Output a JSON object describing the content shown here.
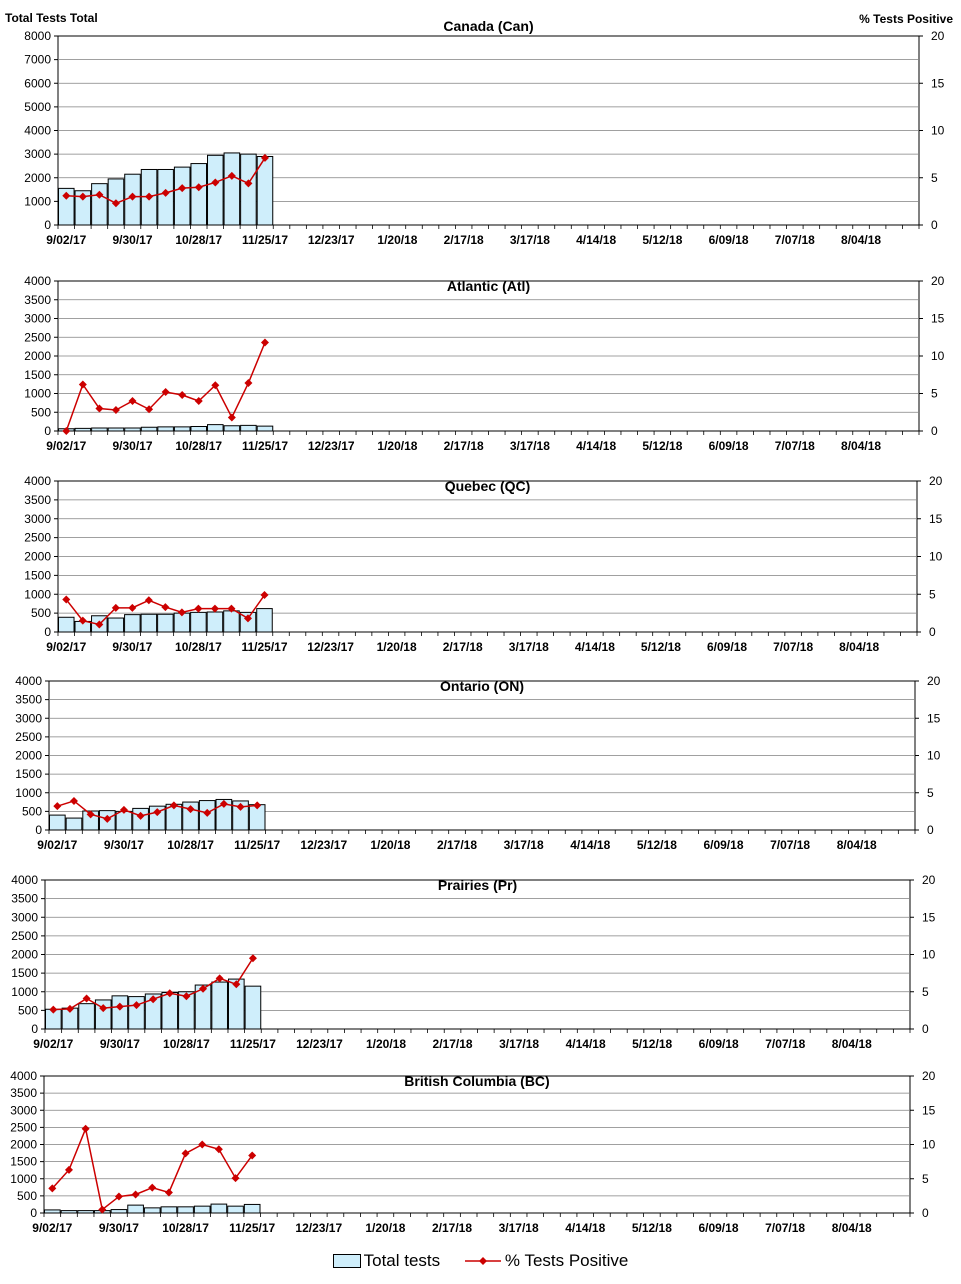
{
  "header": {
    "left_label": "Total Tests Total",
    "right_label": "% Tests Positive"
  },
  "legend": {
    "bars_label": "Total tests",
    "line_label": "% Tests Positive"
  },
  "colors": {
    "bar_fill": "#cfeefb",
    "bar_stroke": "#000000",
    "line": "#cc0000",
    "grid": "#808080"
  },
  "shared_x_ticks": [
    "9/02/17",
    "9/30/17",
    "10/28/17",
    "11/25/17",
    "12/23/17",
    "1/20/18",
    "2/17/18",
    "3/17/18",
    "4/14/18",
    "5/12/18",
    "6/09/18",
    "7/07/18",
    "8/04/18"
  ],
  "chart_data": [
    {
      "type": "bar",
      "title": "Canada (Can)",
      "x_ticks": [
        "9/02/17",
        "9/30/17",
        "10/28/17",
        "11/25/17",
        "12/23/17",
        "1/20/18",
        "2/17/18",
        "3/17/18",
        "4/14/18",
        "5/12/18",
        "6/09/18",
        "7/07/18",
        "8/04/18"
      ],
      "y_left": [
        0,
        8000
      ],
      "y_left_ticks": [
        0,
        1000,
        2000,
        3000,
        4000,
        5000,
        6000,
        7000,
        8000
      ],
      "y_right": [
        0,
        20
      ],
      "y_right_ticks": [
        0,
        5,
        10,
        15,
        20
      ],
      "series": [
        {
          "name": "Total tests",
          "type": "bar",
          "axis": "left",
          "values": [
            1550,
            1450,
            1750,
            1950,
            2150,
            2350,
            2350,
            2450,
            2600,
            2950,
            3050,
            3000,
            2900
          ]
        },
        {
          "name": "% Tests Positive",
          "type": "line",
          "axis": "right",
          "values": [
            3.1,
            3.0,
            3.2,
            2.3,
            3.0,
            3.0,
            3.4,
            3.9,
            4.0,
            4.5,
            5.2,
            4.4,
            7.1
          ]
        }
      ],
      "grid": true
    },
    {
      "type": "bar",
      "title": "Atlantic (Atl)",
      "x_ticks": [
        "9/02/17",
        "9/30/17",
        "10/28/17",
        "11/25/17",
        "12/23/17",
        "1/20/18",
        "2/17/18",
        "3/17/18",
        "4/14/18",
        "5/12/18",
        "6/09/18",
        "7/07/18",
        "8/04/18"
      ],
      "y_left": [
        0,
        4000
      ],
      "y_left_ticks": [
        0,
        500,
        1000,
        1500,
        2000,
        2500,
        3000,
        3500,
        4000
      ],
      "y_right": [
        0,
        20
      ],
      "y_right_ticks": [
        0,
        5,
        10,
        15,
        20
      ],
      "series": [
        {
          "name": "Total tests",
          "type": "bar",
          "axis": "left",
          "values": [
            60,
            70,
            80,
            80,
            80,
            100,
            110,
            110,
            120,
            170,
            140,
            150,
            130
          ]
        },
        {
          "name": "% Tests Positive",
          "type": "line",
          "axis": "right",
          "values": [
            0,
            6.2,
            3.0,
            2.8,
            4.0,
            2.9,
            5.2,
            4.8,
            4.0,
            6.1,
            1.8,
            6.4,
            11.8
          ]
        }
      ],
      "grid": true
    },
    {
      "type": "bar",
      "title": "Quebec (QC)",
      "x_ticks": [
        "9/02/17",
        "9/30/17",
        "10/28/17",
        "11/25/17",
        "12/23/17",
        "1/20/18",
        "2/17/18",
        "3/17/18",
        "4/14/18",
        "5/12/18",
        "6/09/18",
        "7/07/18",
        "8/04/18"
      ],
      "y_left": [
        0,
        4000
      ],
      "y_left_ticks": [
        0,
        500,
        1000,
        1500,
        2000,
        2500,
        3000,
        3500,
        4000
      ],
      "y_right": [
        0,
        20
      ],
      "y_right_ticks": [
        0,
        5,
        10,
        15,
        20
      ],
      "series": [
        {
          "name": "Total tests",
          "type": "bar",
          "axis": "left",
          "values": [
            390,
            280,
            430,
            370,
            460,
            470,
            470,
            500,
            520,
            530,
            560,
            520,
            620
          ]
        },
        {
          "name": "% Tests Positive",
          "type": "line",
          "axis": "right",
          "values": [
            4.3,
            1.5,
            1.0,
            3.2,
            3.2,
            4.2,
            3.3,
            2.6,
            3.1,
            3.1,
            3.1,
            1.8,
            4.9
          ]
        }
      ],
      "grid": true
    },
    {
      "type": "bar",
      "title": "Ontario (ON)",
      "x_ticks": [
        "9/02/17",
        "9/30/17",
        "10/28/17",
        "11/25/17",
        "12/23/17",
        "1/20/18",
        "2/17/18",
        "3/17/18",
        "4/14/18",
        "5/12/18",
        "6/09/18",
        "7/07/18",
        "8/04/18"
      ],
      "y_left": [
        0,
        4000
      ],
      "y_left_ticks": [
        0,
        500,
        1000,
        1500,
        2000,
        2500,
        3000,
        3500,
        4000
      ],
      "y_right": [
        0,
        20
      ],
      "y_right_ticks": [
        0,
        5,
        10,
        15,
        20
      ],
      "series": [
        {
          "name": "Total tests",
          "type": "bar",
          "axis": "left",
          "values": [
            400,
            320,
            510,
            520,
            500,
            580,
            640,
            690,
            750,
            790,
            820,
            780,
            680
          ]
        },
        {
          "name": "% Tests Positive",
          "type": "line",
          "axis": "right",
          "values": [
            3.2,
            3.9,
            2.1,
            1.5,
            2.7,
            1.9,
            2.4,
            3.3,
            2.8,
            2.3,
            3.5,
            3.1,
            3.3
          ]
        }
      ],
      "grid": true
    },
    {
      "type": "bar",
      "title": "Prairies (Pr)",
      "x_ticks": [
        "9/02/17",
        "9/30/17",
        "10/28/17",
        "11/25/17",
        "12/23/17",
        "1/20/18",
        "2/17/18",
        "3/17/18",
        "4/14/18",
        "5/12/18",
        "6/09/18",
        "7/07/18",
        "8/04/18"
      ],
      "y_left": [
        0,
        4000
      ],
      "y_left_ticks": [
        0,
        500,
        1000,
        1500,
        2000,
        2500,
        3000,
        3500,
        4000
      ],
      "y_right": [
        0,
        20
      ],
      "y_right_ticks": [
        0,
        5,
        10,
        15,
        20
      ],
      "series": [
        {
          "name": "Total tests",
          "type": "bar",
          "axis": "left",
          "values": [
            530,
            560,
            680,
            780,
            890,
            870,
            940,
            980,
            1000,
            1180,
            1260,
            1340,
            1150
          ]
        },
        {
          "name": "% Tests Positive",
          "type": "line",
          "axis": "right",
          "values": [
            2.6,
            2.7,
            4.1,
            2.8,
            3.0,
            3.2,
            4.0,
            4.8,
            4.4,
            5.4,
            6.8,
            6.0,
            9.5
          ]
        }
      ],
      "grid": true
    },
    {
      "type": "bar",
      "title": "British Columbia (BC)",
      "x_ticks": [
        "9/02/17",
        "9/30/17",
        "10/28/17",
        "11/25/17",
        "12/23/17",
        "1/20/18",
        "2/17/18",
        "3/17/18",
        "4/14/18",
        "5/12/18",
        "6/09/18",
        "7/07/18",
        "8/04/18"
      ],
      "y_left": [
        0,
        4000
      ],
      "y_left_ticks": [
        0,
        500,
        1000,
        1500,
        2000,
        2500,
        3000,
        3500,
        4000
      ],
      "y_right": [
        0,
        20
      ],
      "y_right_ticks": [
        0,
        5,
        10,
        15,
        20
      ],
      "series": [
        {
          "name": "Total tests",
          "type": "bar",
          "axis": "left",
          "values": [
            90,
            70,
            70,
            70,
            100,
            230,
            150,
            180,
            180,
            200,
            260,
            200,
            250
          ]
        },
        {
          "name": "% Tests Positive",
          "type": "line",
          "axis": "right",
          "values": [
            3.6,
            6.3,
            12.3,
            0.5,
            2.4,
            2.7,
            3.7,
            3.0,
            8.7,
            10.0,
            9.3,
            5.1,
            8.4
          ]
        }
      ],
      "grid": true
    }
  ]
}
